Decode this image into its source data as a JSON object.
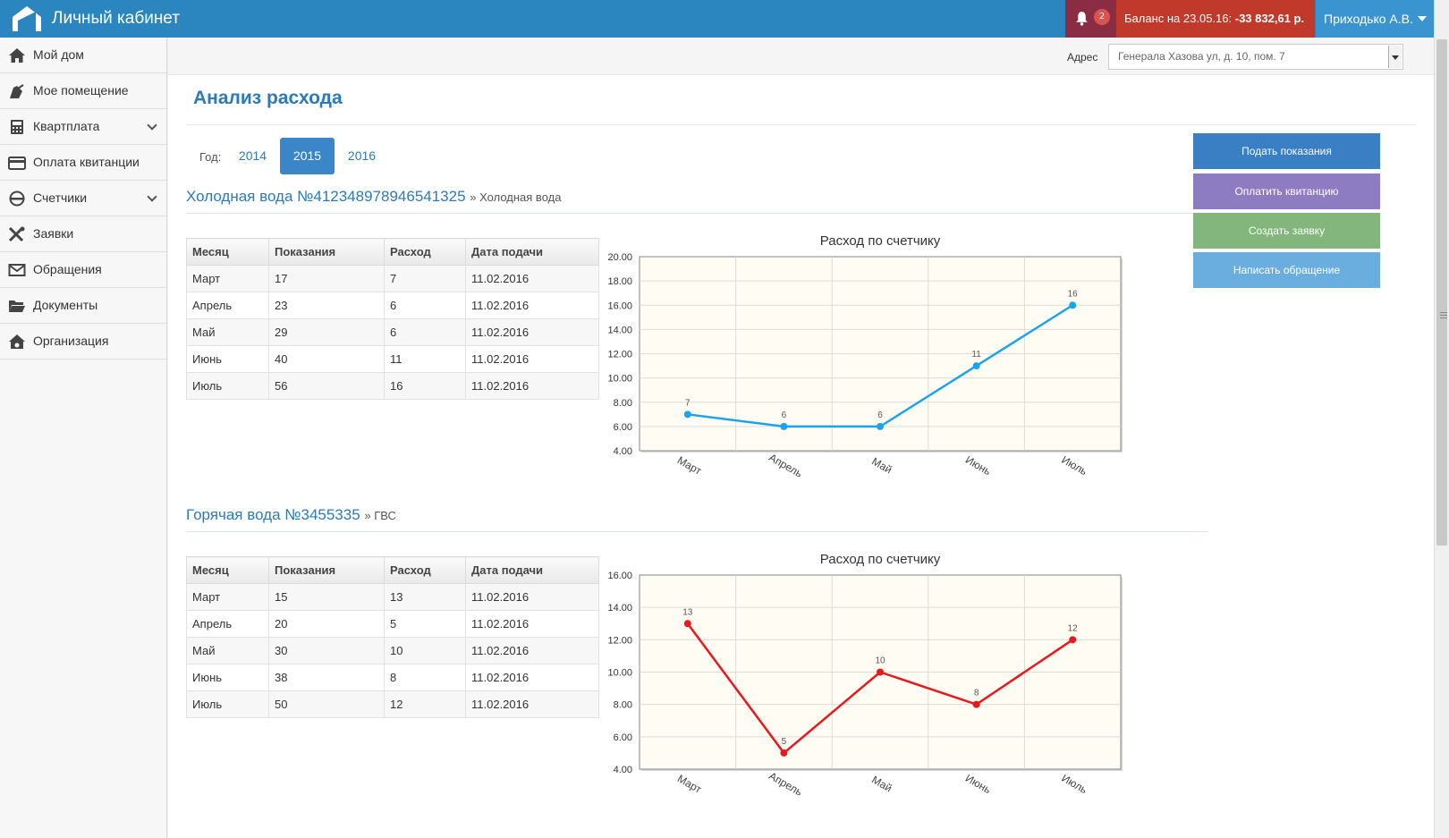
{
  "header": {
    "brand": "Личный кабинет",
    "notifications": "2",
    "balance_label": "Баланс на 23.05.16:",
    "balance_value": "-33 832,61 р.",
    "user": "Приходько А.В."
  },
  "sidebar": {
    "items": [
      {
        "label": "Мой дом",
        "icon": "home-icon"
      },
      {
        "label": "Мое помещение",
        "icon": "room-icon"
      },
      {
        "label": "Квартплата",
        "icon": "calculator-icon"
      },
      {
        "label": "Оплата квитанции",
        "icon": "credit-card-icon"
      },
      {
        "label": "Счетчики",
        "icon": "meter-icon"
      },
      {
        "label": "Заявки",
        "icon": "tools-icon"
      },
      {
        "label": "Обращения",
        "icon": "envelope-icon"
      },
      {
        "label": "Документы",
        "icon": "folder-icon"
      },
      {
        "label": "Организация",
        "icon": "organization-icon"
      }
    ]
  },
  "address": {
    "label": "Адрес",
    "value": "Генерала Хазова ул, д. 10, пом. 7"
  },
  "page": {
    "title": "Анализ расхода",
    "year_label": "Год:",
    "years": [
      "2014",
      "2015",
      "2016"
    ],
    "active_year": "2015"
  },
  "actions": [
    {
      "label": "Подать показания",
      "color": "#3a7fc4"
    },
    {
      "label": "Оплатить квитанцию",
      "color": "#8e7cc3"
    },
    {
      "label": "Создать заявку",
      "color": "#82b67c"
    },
    {
      "label": "Написать обращение",
      "color": "#6aaee0"
    }
  ],
  "meters": [
    {
      "title": "Холодная вода №412348978946541325",
      "subtitle": "» Холодная вода",
      "columns": [
        "Месяц",
        "Показания",
        "Расход",
        "Дата подачи"
      ],
      "rows": [
        [
          "Март",
          "17",
          "7",
          "11.02.2016"
        ],
        [
          "Апрель",
          "23",
          "6",
          "11.02.2016"
        ],
        [
          "Май",
          "29",
          "6",
          "11.02.2016"
        ],
        [
          "Июнь",
          "40",
          "11",
          "11.02.2016"
        ],
        [
          "Июль",
          "56",
          "16",
          "11.02.2016"
        ]
      ]
    },
    {
      "title": "Горячая вода №3455335",
      "subtitle": "» ГВС",
      "columns": [
        "Месяц",
        "Показания",
        "Расход",
        "Дата подачи"
      ],
      "rows": [
        [
          "Март",
          "15",
          "13",
          "11.02.2016"
        ],
        [
          "Апрель",
          "20",
          "5",
          "11.02.2016"
        ],
        [
          "Май",
          "30",
          "10",
          "11.02.2016"
        ],
        [
          "Июнь",
          "38",
          "8",
          "11.02.2016"
        ],
        [
          "Июль",
          "50",
          "12",
          "11.02.2016"
        ]
      ]
    }
  ],
  "chart_data": [
    {
      "type": "line",
      "title": "Расход по счетчику",
      "categories": [
        "Март",
        "Апрель",
        "Май",
        "Июнь",
        "Июль"
      ],
      "series": [
        {
          "values": [
            7,
            6,
            6,
            11,
            16
          ],
          "color": "#1ca3ec"
        }
      ],
      "ylim": [
        4,
        20
      ],
      "yticks": [
        "4.00",
        "6.00",
        "8.00",
        "10.00",
        "12.00",
        "14.00",
        "16.00",
        "18.00",
        "20.00"
      ],
      "grid": true
    },
    {
      "type": "line",
      "title": "Расход по счетчику",
      "categories": [
        "Март",
        "Апрель",
        "Май",
        "Июнь",
        "Июль"
      ],
      "series": [
        {
          "values": [
            13,
            5,
            10,
            8,
            12
          ],
          "color": "#e8191c"
        }
      ],
      "ylim": [
        4,
        16
      ],
      "yticks": [
        "4.00",
        "6.00",
        "8.00",
        "10.00",
        "12.00",
        "14.00",
        "16.00"
      ],
      "grid": true
    }
  ]
}
